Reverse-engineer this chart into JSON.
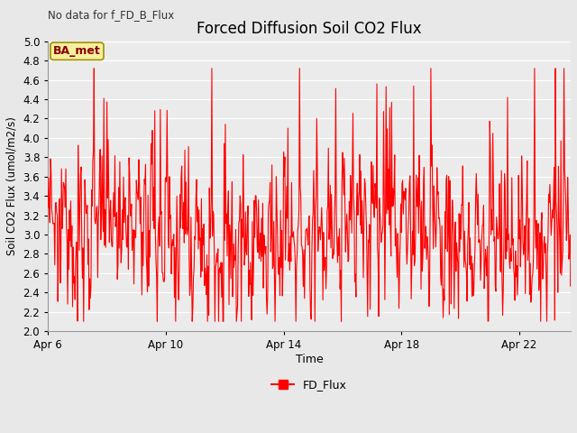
{
  "title": "Forced Diffusion Soil CO2 Flux",
  "xlabel": "Time",
  "ylabel": "Soil CO2 Flux (umol/m2/s)",
  "no_data_label": "No data for f_FD_B_Flux",
  "legend_label": "FD_Flux",
  "site_label": "BA_met",
  "ylim": [
    2.0,
    5.0
  ],
  "yticks": [
    2.0,
    2.2,
    2.4,
    2.6,
    2.8,
    3.0,
    3.2,
    3.4,
    3.6,
    3.8,
    4.0,
    4.2,
    4.4,
    4.6,
    4.8,
    5.0
  ],
  "line_color": "#FF0000",
  "line_width": 0.8,
  "bg_color": "#E8E8E8",
  "plot_bg_color": "#EBEBEB",
  "grid_color": "#FFFFFF",
  "xtick_days": [
    6,
    10,
    14,
    18,
    22
  ],
  "seed": 12345
}
